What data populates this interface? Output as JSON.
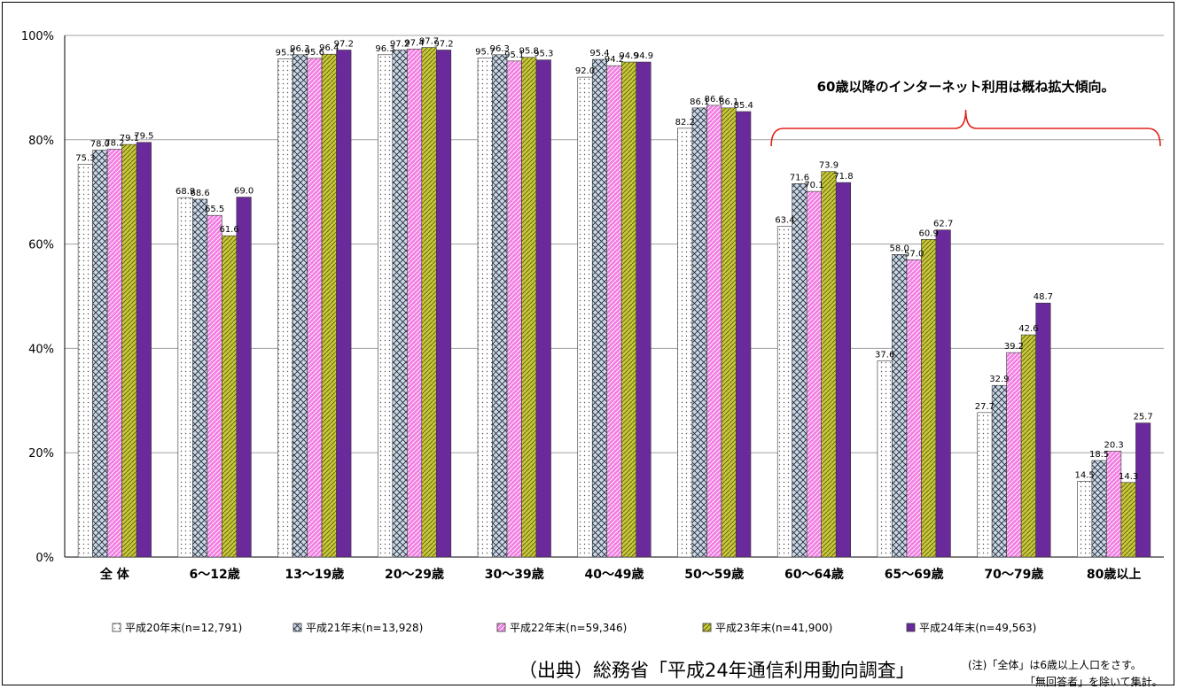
{
  "chart_data": {
    "type": "bar",
    "categories": [
      "全 体",
      "6～12歳",
      "13～19歳",
      "20～29歳",
      "30～39歳",
      "40～49歳",
      "50～59歳",
      "60～64歳",
      "65～69歳",
      "70～79歳",
      "80歳以上"
    ],
    "series": [
      {
        "name": "平成20年末(n=12,791)",
        "values": [
          75.3,
          68.9,
          95.5,
          96.3,
          95.7,
          92.0,
          82.2,
          63.4,
          37.6,
          27.7,
          14.5
        ]
      },
      {
        "name": "平成21年末(n=13,928)",
        "values": [
          78.0,
          68.6,
          96.3,
          97.2,
          96.3,
          95.4,
          86.1,
          71.6,
          58.0,
          32.9,
          18.5
        ]
      },
      {
        "name": "平成22年末(n=59,346)",
        "values": [
          78.2,
          65.5,
          95.6,
          97.4,
          95.1,
          94.2,
          86.6,
          70.1,
          57.0,
          39.2,
          20.3
        ]
      },
      {
        "name": "平成23年末(n=41,900)",
        "values": [
          79.1,
          61.6,
          96.4,
          97.7,
          95.8,
          94.9,
          86.1,
          73.9,
          60.9,
          42.6,
          14.3
        ]
      },
      {
        "name": "平成24年末(n=49,563)",
        "values": [
          79.5,
          69.0,
          97.2,
          97.2,
          95.3,
          94.9,
          85.4,
          71.8,
          62.7,
          48.7,
          25.7
        ]
      }
    ],
    "value_labels": [
      [
        "75.3",
        "68.9",
        "95.5",
        "96.3",
        "95.7",
        "92.0",
        "82.2",
        "63.4",
        "37.6",
        "27.7",
        "14.5"
      ],
      [
        "78.0",
        "68.6",
        "96.3",
        "97.2",
        "96.3",
        "95.4",
        "86.1",
        "71.6",
        "58.0",
        "32.9",
        "18.5"
      ],
      [
        "78.2",
        "65.5",
        "95.6",
        "97.4",
        "95.1",
        "94.2",
        "86.6",
        "70.1",
        "57.0",
        "39.2",
        "20.3"
      ],
      [
        "79.1",
        "61.6",
        "96.4",
        "97.7",
        "95.8",
        "94.9",
        "86.1",
        "73.9",
        "60.9",
        "42.6",
        "14.3"
      ],
      [
        "79.5",
        "69.0",
        "97.2",
        "97.2",
        "95.3",
        "94.9",
        "85.4",
        "71.8",
        "62.7",
        "48.7",
        "25.7"
      ]
    ],
    "yticks": [
      "0%",
      "20%",
      "40%",
      "60%",
      "80%",
      "100%"
    ],
    "ylim": [
      0,
      100
    ],
    "grid": true,
    "legend_position": "bottom",
    "series_colors": [
      "#ffffff",
      "#c8d8ec",
      "#f27ee2",
      "#c8c83a",
      "#6a2a9c"
    ],
    "series_patterns": [
      "dots",
      "crosshatch",
      "diagonal",
      "diagonal",
      "solid"
    ],
    "annotation": "60歳以降のインターネット利用は概ね拡大傾向。",
    "annotation_color": "#e0201c"
  },
  "footer": {
    "source": "（出典）総務省「平成24年通信利用動向調査」",
    "note_line1": "(注)「全体」は6歳以上人口をさす。",
    "note_line2": "「無回答者」を除いて集計。"
  }
}
